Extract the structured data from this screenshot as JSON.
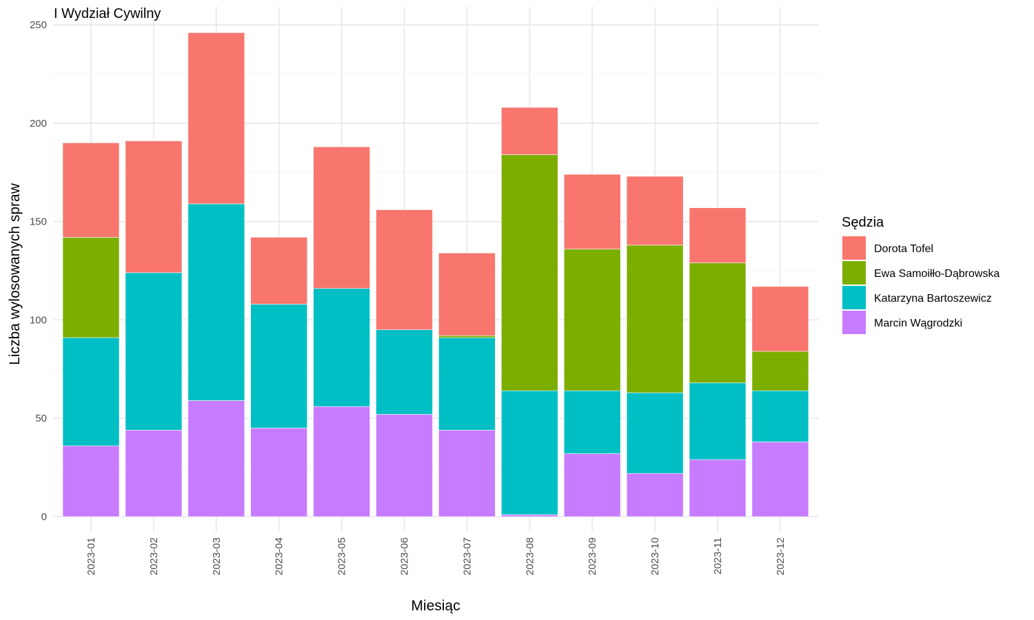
{
  "chart_data": {
    "type": "bar",
    "stacked": true,
    "title": "I Wydział Cywilny",
    "xlabel": "Miesiąc",
    "ylabel": "Liczba wylosowanych spraw",
    "ylim": [
      0,
      250
    ],
    "yticks": [
      0,
      50,
      100,
      150,
      200,
      250
    ],
    "grid": true,
    "legend_position": "right",
    "legend_title": "Sędzia",
    "categories": [
      "2023-01",
      "2023-02",
      "2023-03",
      "2023-04",
      "2023-05",
      "2023-06",
      "2023-07",
      "2023-08",
      "2023-09",
      "2023-10",
      "2023-11",
      "2023-12"
    ],
    "series": [
      {
        "name": "Dorota Tofel",
        "color": "#F8766D",
        "values": [
          48,
          67,
          87,
          34,
          72,
          61,
          42,
          24,
          38,
          35,
          28,
          33
        ]
      },
      {
        "name": "Ewa Samoiłło-Dąbrowska",
        "color": "#7CAE00",
        "values": [
          51,
          0,
          0,
          0,
          0,
          0,
          1,
          120,
          72,
          75,
          61,
          20
        ]
      },
      {
        "name": "Katarzyna Bartoszewicz",
        "color": "#00BFC4",
        "values": [
          55,
          80,
          100,
          63,
          60,
          43,
          47,
          63,
          32,
          41,
          39,
          26
        ]
      },
      {
        "name": "Marcin Wągrodzki",
        "color": "#C77CFF",
        "values": [
          36,
          44,
          59,
          45,
          56,
          52,
          44,
          1,
          32,
          22,
          29,
          38
        ]
      }
    ]
  }
}
